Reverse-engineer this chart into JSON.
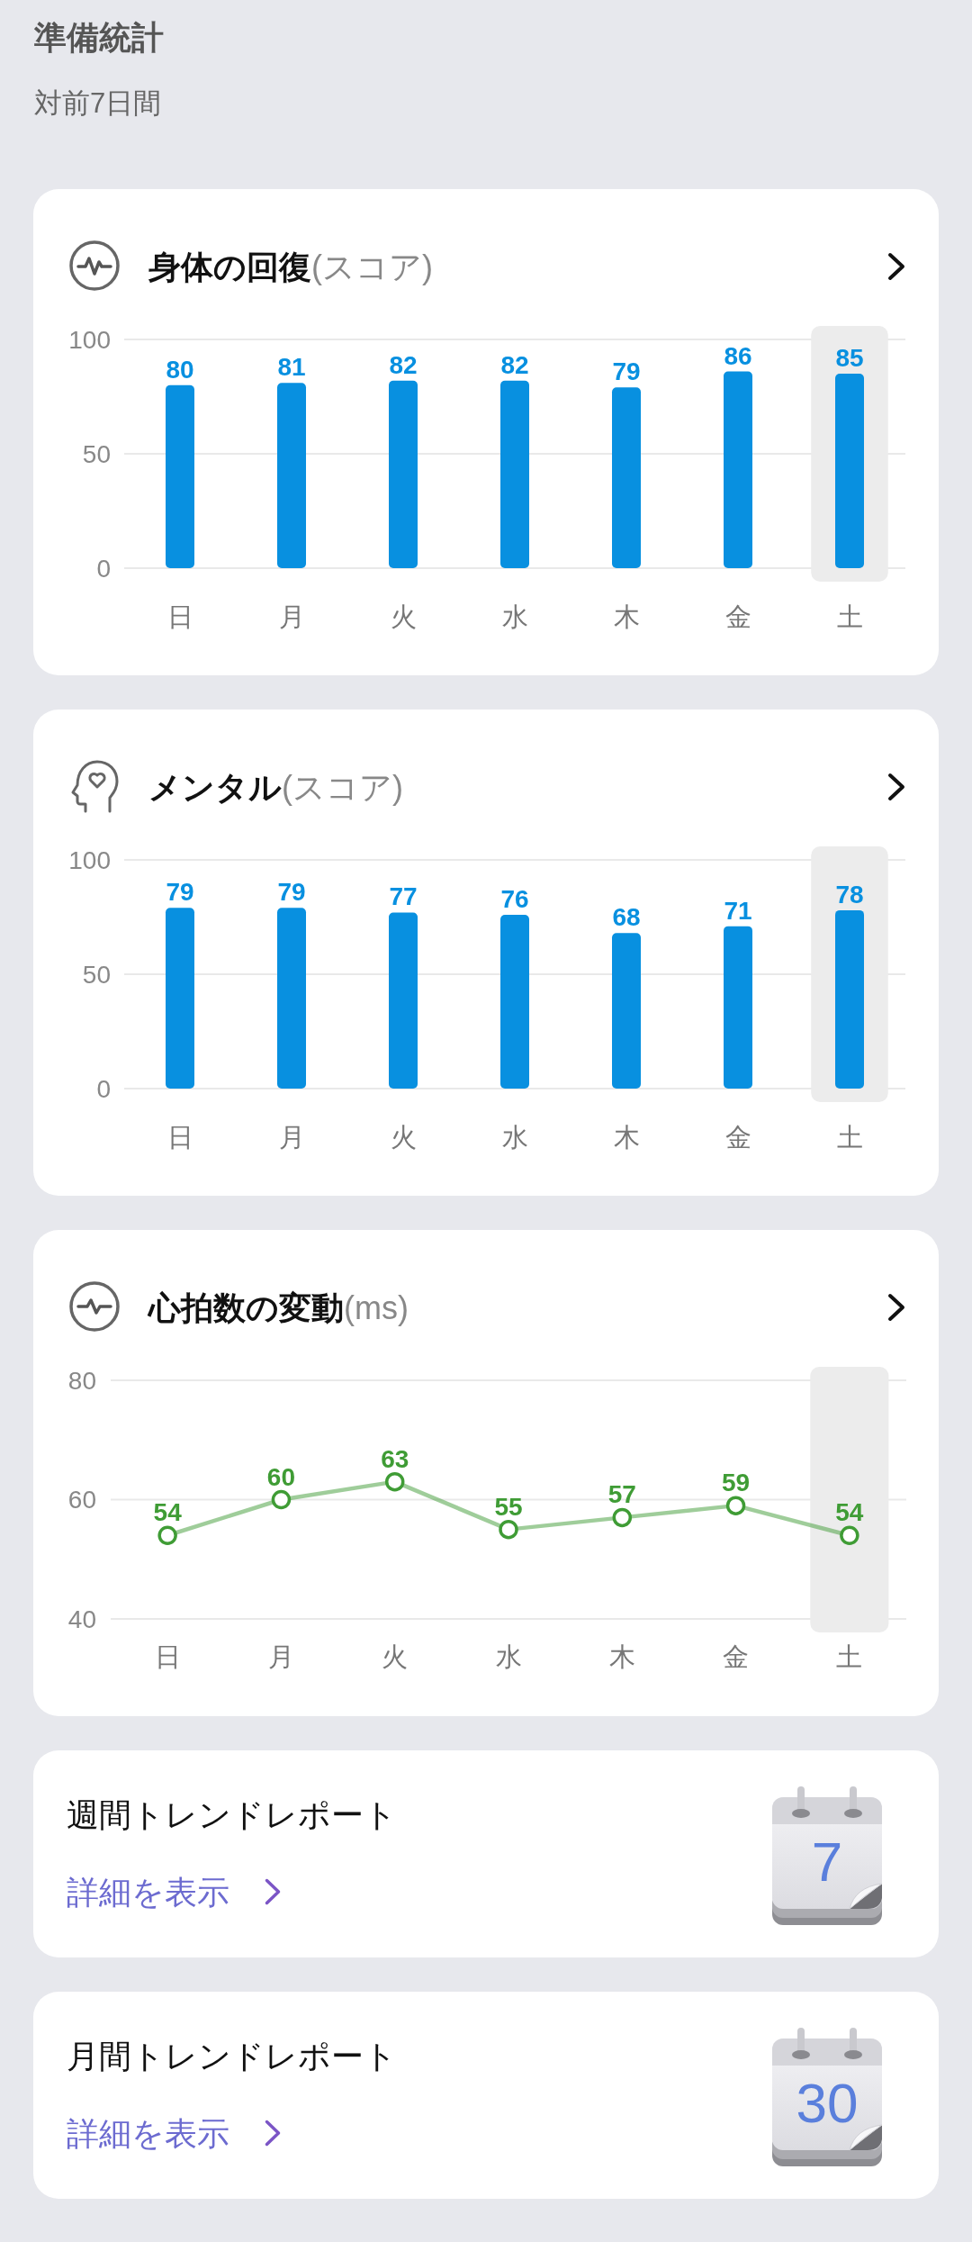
{
  "chart_data": [
    {
      "type": "other",
      "title": "準備統計",
      "subtitle": "対前7日間"
    },
    {
      "type": "bar",
      "title": "身体の回復",
      "ylabel": "(スコア)",
      "categories": [
        "日",
        "月",
        "火",
        "水",
        "木",
        "金",
        "土"
      ],
      "values": [
        80,
        81,
        82,
        82,
        79,
        86,
        85
      ],
      "color": "#0890e0",
      "ylim": [
        0,
        100
      ],
      "yticks": [
        0,
        50,
        100
      ],
      "grid": "y",
      "data_labels": true,
      "bands": [
        {
          "axis": "x",
          "from": "土",
          "to": "土",
          "color": "#ececec"
        }
      ]
    },
    {
      "type": "bar",
      "title": "メンタル",
      "ylabel": "(スコア)",
      "categories": [
        "日",
        "月",
        "火",
        "水",
        "木",
        "金",
        "土"
      ],
      "values": [
        79,
        79,
        77,
        76,
        68,
        71,
        78
      ],
      "color": "#0890e0",
      "ylim": [
        0,
        100
      ],
      "yticks": [
        0,
        50,
        100
      ],
      "grid": "y",
      "data_labels": true,
      "bands": [
        {
          "axis": "x",
          "from": "土",
          "to": "土",
          "color": "#ececec"
        }
      ]
    },
    {
      "type": "line",
      "title": "心拍数の変動",
      "ylabel": "(ms)",
      "categories": [
        "日",
        "月",
        "火",
        "水",
        "木",
        "金",
        "土"
      ],
      "values": [
        54,
        60,
        63,
        55,
        57,
        59,
        54
      ],
      "color": "#3f9c35",
      "ylim": [
        40,
        80
      ],
      "yticks": [
        40,
        60,
        80
      ],
      "grid": "y",
      "marker": "circle",
      "line_style": "solid",
      "data_labels": true,
      "bands": [
        {
          "axis": "x",
          "from": "土",
          "to": "土",
          "color": "#ececec"
        }
      ]
    },
    {
      "type": "other",
      "title": "週間トレンドレポート",
      "annotations": [
        "詳細を表示",
        "7"
      ]
    },
    {
      "type": "other",
      "title": "月間トレンドレポート",
      "annotations": [
        "詳細を表示",
        "30"
      ]
    }
  ]
}
